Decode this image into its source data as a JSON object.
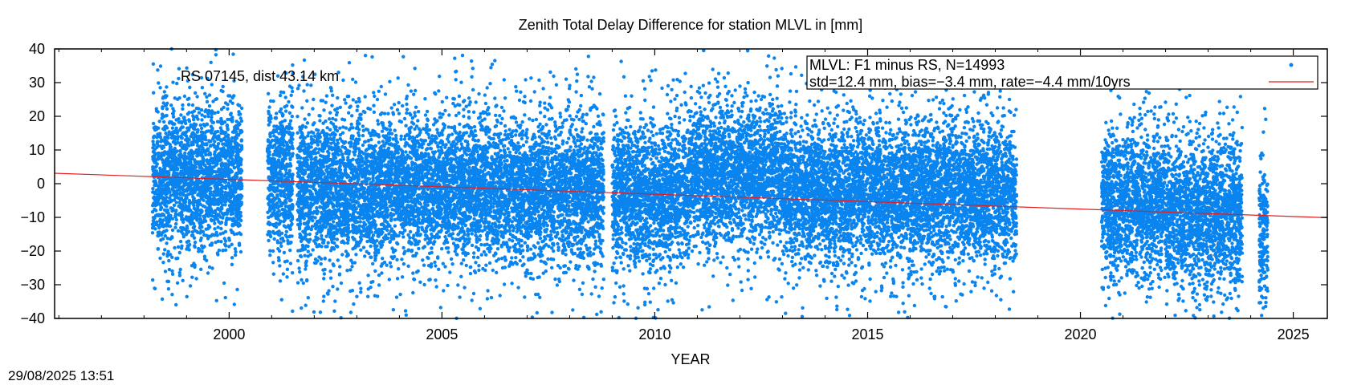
{
  "chart_data": {
    "type": "scatter",
    "title": "Zenith Total Delay Difference for station MLVL in [mm]",
    "xlabel": "YEAR",
    "ylabel": "",
    "xlim": [
      1995.9,
      2025.8
    ],
    "ylim": [
      -40,
      40
    ],
    "x_ticks": [
      2000,
      2005,
      2010,
      2015,
      2020,
      2025
    ],
    "y_ticks": [
      -40,
      -30,
      -20,
      -10,
      0,
      10,
      20,
      30,
      40
    ],
    "grid": false,
    "legend_position": "top-right",
    "annotation": "RS 07145, dist 43.14 km",
    "timestamp": "29/08/2025 13:51",
    "colors": {
      "points": "#0a84ee",
      "trend": "#e02020"
    },
    "series": [
      {
        "name": "MLVL: F1 minus RS, N=14993",
        "kind": "points",
        "count": 14993,
        "segments": [
          {
            "start": 1998.2,
            "end": 2000.3,
            "mean": 1.5
          },
          {
            "start": 2000.9,
            "end": 2001.5,
            "mean": 2.0
          },
          {
            "start": 2001.6,
            "end": 2008.8,
            "mean": -1.8
          },
          {
            "start": 2009.0,
            "end": 2010.8,
            "mean": -3.5
          },
          {
            "start": 2010.8,
            "end": 2013.0,
            "mean": 2.5
          },
          {
            "start": 2013.0,
            "end": 2018.5,
            "mean": -2.5
          },
          {
            "start": 2020.5,
            "end": 2022.0,
            "mean": -5.5
          },
          {
            "start": 2022.0,
            "end": 2023.8,
            "mean": -9.0
          },
          {
            "start": 2024.2,
            "end": 2024.4,
            "mean": -14.0
          }
        ]
      },
      {
        "name": "std=12.4 mm, bias=−3.4 mm, rate=−4.4 mm/10yrs",
        "kind": "line",
        "x": [
          1995.9,
          2025.8
        ],
        "y": [
          3.1,
          -10.1
        ]
      }
    ]
  }
}
